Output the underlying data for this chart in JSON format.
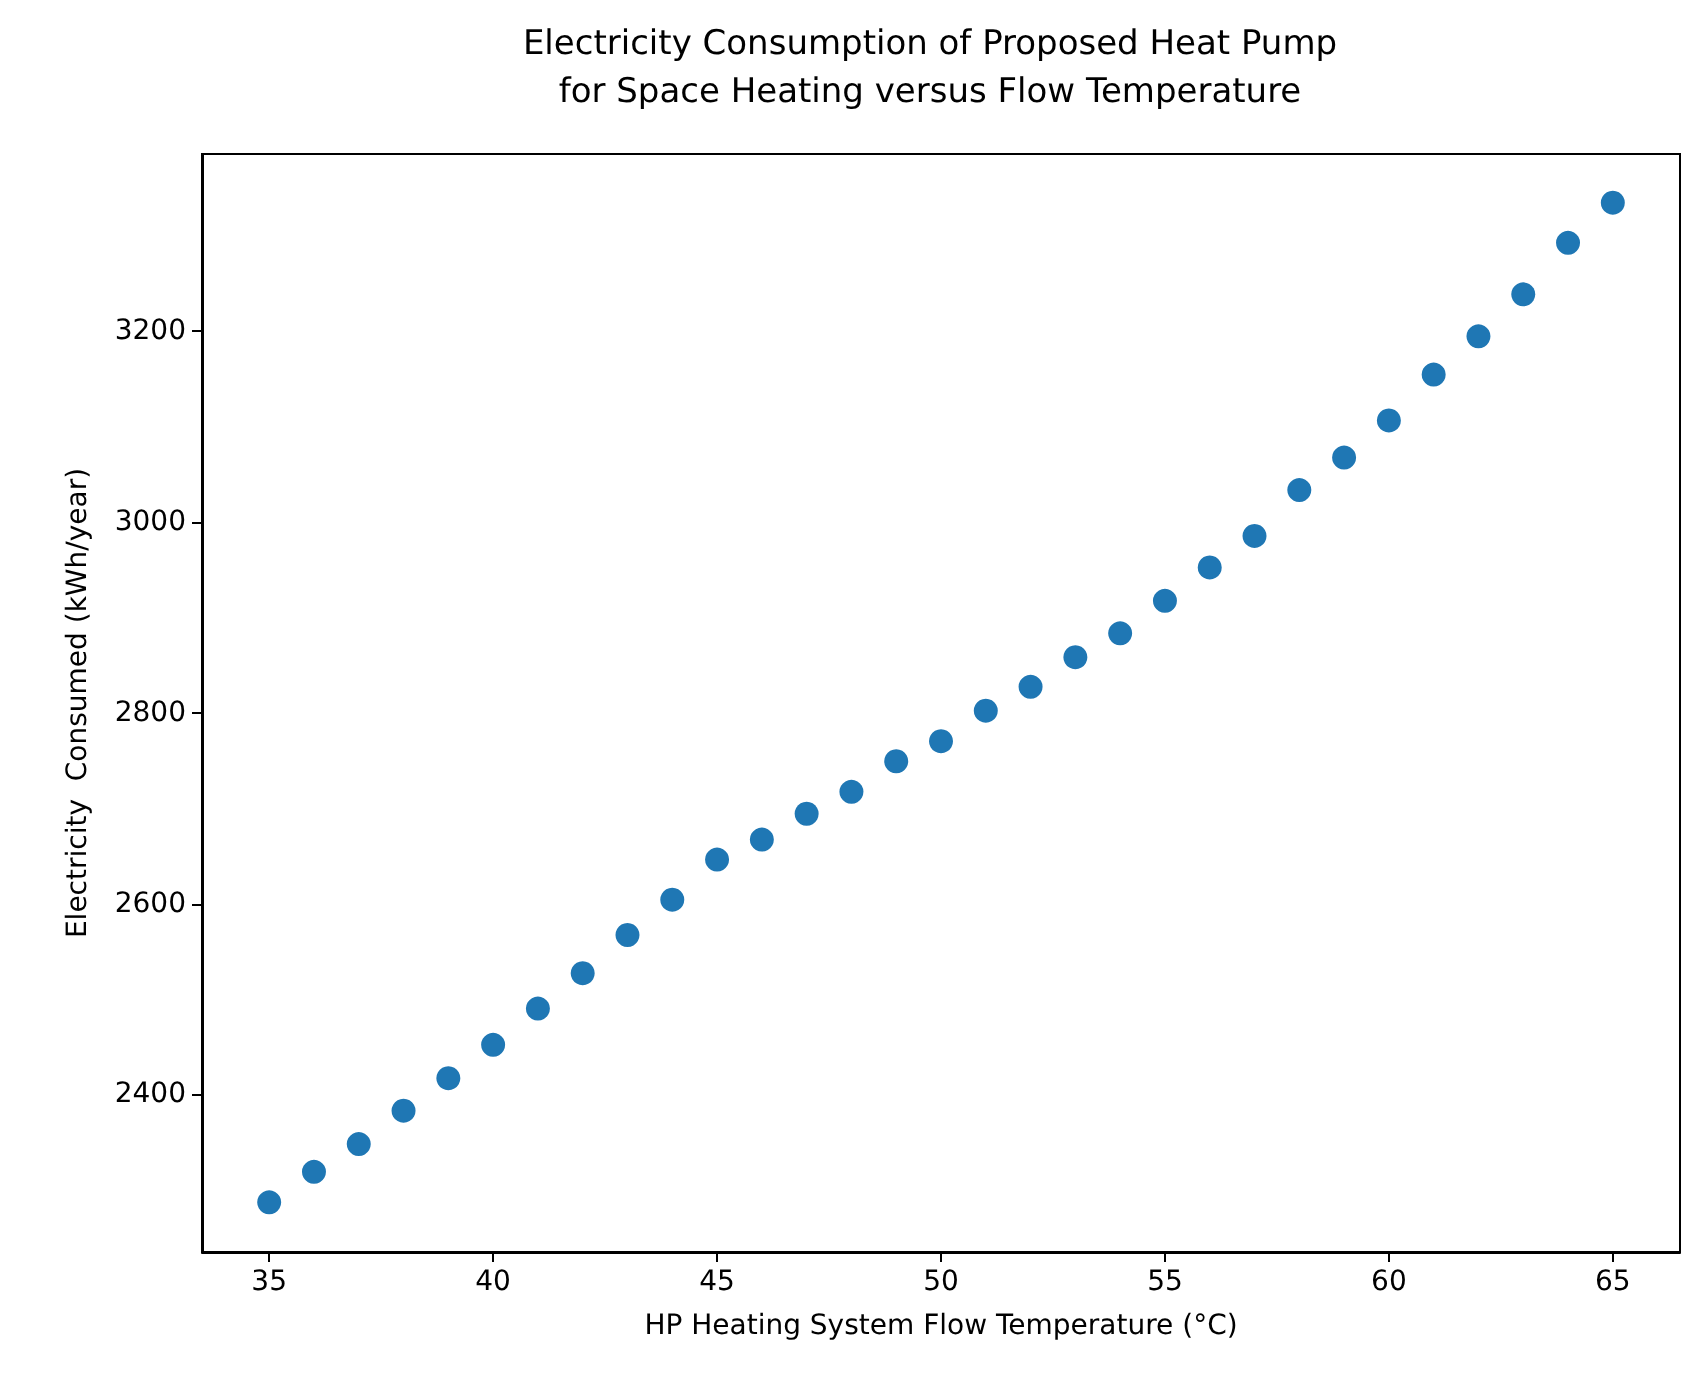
{
  "chart_data": {
    "type": "scatter",
    "title": "Electricity Consumption of Proposed Heat Pump\nfor Space Heating versus Flow Temperature",
    "xlabel": "HP Heating System Flow Temperature (°C)",
    "ylabel": "Electricity  Consumed (kWh/year)",
    "x": [
      35,
      36,
      37,
      38,
      39,
      40,
      41,
      42,
      43,
      44,
      45,
      46,
      47,
      48,
      49,
      50,
      51,
      52,
      53,
      54,
      55,
      56,
      57,
      58,
      59,
      60,
      61,
      62,
      63,
      64,
      65
    ],
    "series": [
      {
        "color": "#1f77b4",
        "values": [
          2287,
          2319,
          2348,
          2383,
          2417,
          2452,
          2490,
          2527,
          2567,
          2604,
          2646,
          2667,
          2694,
          2717,
          2749,
          2770,
          2802,
          2827,
          2858,
          2883,
          2917,
          2952,
          2985,
          3033,
          3067,
          3106,
          3154,
          3194,
          3238,
          3292,
          3334
        ]
      }
    ],
    "xlim": [
      33.5,
      66.5
    ],
    "ylim": [
      2235,
      3385
    ],
    "xticks": [
      35,
      40,
      45,
      50,
      55,
      60,
      65
    ],
    "yticks": [
      2400,
      2600,
      2800,
      3000,
      3200
    ],
    "marker": "circle"
  }
}
